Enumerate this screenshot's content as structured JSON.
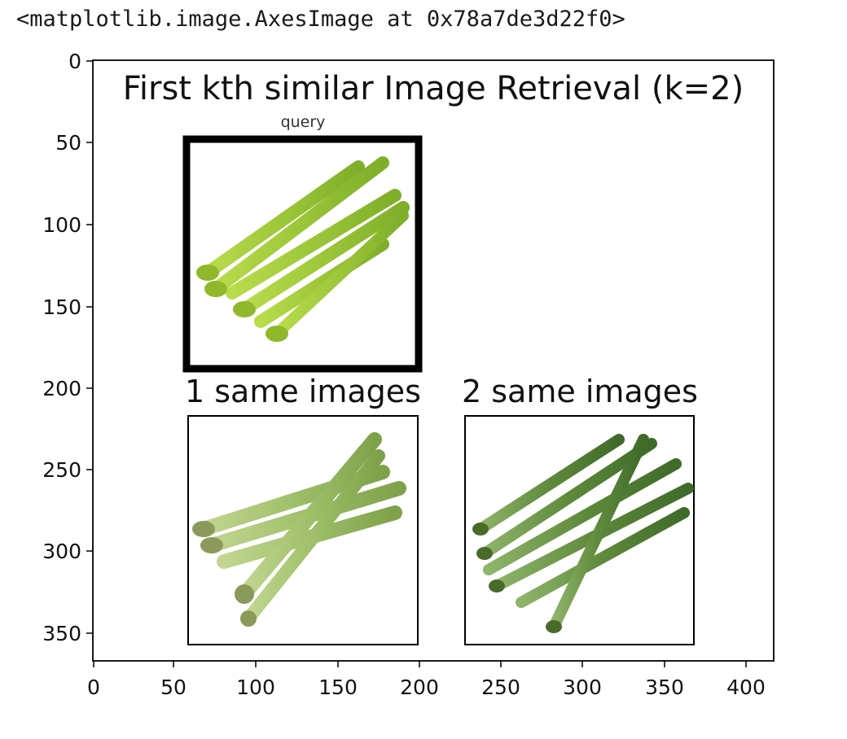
{
  "cell_output": {
    "repr_text": "<matplotlib.image.AxesImage at 0x78a7de3d22f0>"
  },
  "figure": {
    "title": "First kth similar Image Retrieval (k=2)",
    "query_label": "query",
    "result_labels": [
      "1 same images",
      "2 same images"
    ],
    "x_ticks": [
      "0",
      "50",
      "100",
      "150",
      "200",
      "250",
      "300",
      "350",
      "400"
    ],
    "y_ticks": [
      "0",
      "50",
      "100",
      "150",
      "200",
      "250",
      "300",
      "350"
    ],
    "images": [
      {
        "role": "query",
        "subject": "asparagus-bunch",
        "tint": "#9cc63a"
      },
      {
        "role": "result-1",
        "subject": "asparagus-bunch",
        "tint": "#8fb15a"
      },
      {
        "role": "result-2",
        "subject": "asparagus-bunch",
        "tint": "#5f8a3c"
      }
    ]
  }
}
